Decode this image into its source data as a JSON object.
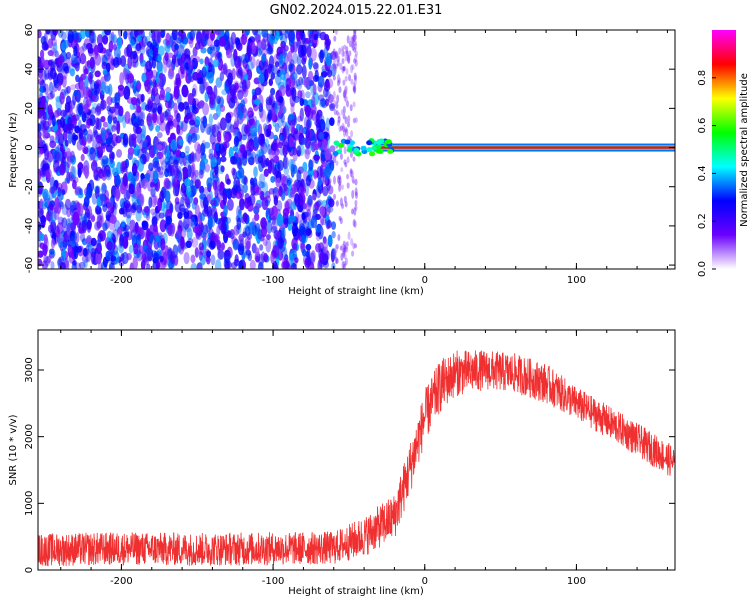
{
  "figure": {
    "title": "GN02.2024.015.22.01.E31"
  },
  "chart_data": [
    {
      "type": "heatmap",
      "xlabel": "Height of straight line (km)",
      "ylabel": "Frequency (Hz)",
      "xlim": [
        -255,
        165
      ],
      "ylim": [
        -62,
        60
      ],
      "xticks": [
        -200,
        -100,
        0,
        100
      ],
      "yticks": [
        -60,
        -40,
        -20,
        0,
        20,
        40,
        60
      ],
      "grid": false,
      "noise_region_x": [
        -255,
        -45
      ],
      "signal_line": {
        "x_start": -60,
        "x_end": 165,
        "frequency": 0,
        "amplitude": 0.9
      },
      "colorbar": {
        "label": "Normalized spectral amplitude",
        "ticks": [
          "0.0",
          "0.2",
          "0.4",
          "0.6",
          "0.8"
        ],
        "range": [
          0,
          1
        ],
        "colors": [
          "#ffffff",
          "#6a00ff",
          "#0000ff",
          "#00ffff",
          "#00ff00",
          "#ffff00",
          "#ff0000",
          "#ff00ff"
        ]
      }
    },
    {
      "type": "line",
      "xlabel": "Height of straight line (km)",
      "ylabel": "SNR (10 * v/v)",
      "xlim": [
        -255,
        165
      ],
      "ylim": [
        0,
        3600
      ],
      "xticks": [
        -200,
        -100,
        0,
        100
      ],
      "yticks": [
        0,
        1000,
        2000,
        3000
      ],
      "grid": false,
      "color": "#f03030",
      "x": [
        -255,
        -200,
        -150,
        -100,
        -60,
        -40,
        -20,
        -10,
        0,
        10,
        20,
        40,
        60,
        80,
        100,
        130,
        165
      ],
      "y": [
        300,
        320,
        310,
        320,
        330,
        500,
        800,
        1500,
        2300,
        2750,
        2950,
        3000,
        2950,
        2800,
        2500,
        2100,
        1600
      ],
      "noise_amplitude": [
        250,
        250,
        250,
        250,
        250,
        300,
        350,
        400,
        400,
        400,
        350,
        300,
        300,
        300,
        250,
        250,
        250
      ]
    }
  ]
}
